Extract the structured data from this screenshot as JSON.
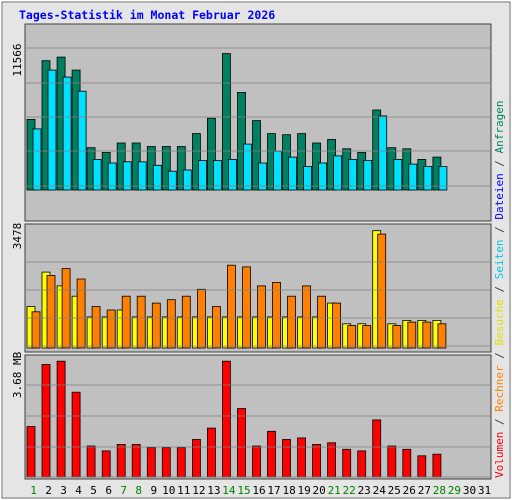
{
  "title": "Tages-Statistik im Monat Februar 2026",
  "colors": {
    "title": "#0000ff",
    "panel_bg": "#c0c0c0",
    "anfragen": "#008060",
    "seiten": "#00e0ff",
    "dateien": "#0000ff",
    "besuche": "#ffff00",
    "rechner": "#ff8000",
    "volumen": "#ff0000",
    "weekend_label": "#008000",
    "separator": "#404040"
  },
  "right_legend": [
    {
      "text": "Volumen",
      "color": "#ff0000"
    },
    {
      "text": " / ",
      "color": "#404040"
    },
    {
      "text": "Rechner",
      "color": "#ff8000"
    },
    {
      "text": " / ",
      "color": "#404040"
    },
    {
      "text": "Besuche",
      "color": "#e0e000"
    },
    {
      "text": " / ",
      "color": "#404040"
    },
    {
      "text": "Seiten",
      "color": "#00c8e0"
    },
    {
      "text": " / ",
      "color": "#404040"
    },
    {
      "text": "Dateien",
      "color": "#0000ff"
    },
    {
      "text": " / ",
      "color": "#404040"
    },
    {
      "text": "Anfragen",
      "color": "#008060"
    }
  ],
  "chart_data": [
    {
      "type": "bar",
      "panel": "top",
      "max_label": "11566",
      "ylim": [
        0,
        11566
      ],
      "categories": [
        "1",
        "2",
        "3",
        "4",
        "5",
        "6",
        "7",
        "8",
        "9",
        "10",
        "11",
        "12",
        "13",
        "14",
        "15",
        "16",
        "17",
        "18",
        "19",
        "20",
        "21",
        "22",
        "23",
        "24",
        "25",
        "26",
        "27",
        "28",
        "29",
        "30",
        "31"
      ],
      "weekend": [
        "1",
        "7",
        "8",
        "14",
        "15",
        "21",
        "22",
        "28",
        "29"
      ],
      "series": [
        {
          "name": "Anfragen",
          "color": "#008060",
          "values": [
            6000,
            11000,
            11300,
            10200,
            3600,
            3200,
            4000,
            4000,
            3700,
            3700,
            3700,
            4800,
            6100,
            11600,
            8300,
            5900,
            4800,
            4700,
            4800,
            4000,
            4300,
            3500,
            3200,
            6800,
            3600,
            3500,
            2600,
            2800,
            0,
            0,
            0
          ]
        },
        {
          "name": "Seiten",
          "color": "#00e0ff",
          "values": [
            5200,
            10200,
            9600,
            8400,
            2600,
            2300,
            2400,
            2400,
            2100,
            1600,
            1700,
            2500,
            2500,
            2600,
            3900,
            2300,
            3300,
            2800,
            2000,
            2300,
            2900,
            2600,
            2500,
            6300,
            2600,
            2200,
            2000,
            2000,
            0,
            0,
            0
          ]
        }
      ]
    },
    {
      "type": "bar",
      "panel": "middle",
      "max_label": "3478",
      "ylim": [
        0,
        3478
      ],
      "categories": [
        "1",
        "2",
        "3",
        "4",
        "5",
        "6",
        "7",
        "8",
        "9",
        "10",
        "11",
        "12",
        "13",
        "14",
        "15",
        "16",
        "17",
        "18",
        "19",
        "20",
        "21",
        "22",
        "23",
        "24",
        "25",
        "26",
        "27",
        "28",
        "29",
        "30",
        "31"
      ],
      "series": [
        {
          "name": "Besuche",
          "color": "#ffff00",
          "values": [
            1200,
            2200,
            1800,
            1500,
            900,
            900,
            1100,
            900,
            900,
            900,
            900,
            900,
            900,
            900,
            900,
            900,
            900,
            900,
            900,
            900,
            1300,
            700,
            700,
            3400,
            700,
            800,
            800,
            800,
            0,
            0,
            0
          ]
        },
        {
          "name": "Rechner",
          "color": "#ff8000",
          "values": [
            1050,
            2100,
            2300,
            2000,
            1200,
            1100,
            1500,
            1500,
            1300,
            1400,
            1500,
            1700,
            1200,
            2400,
            2350,
            1800,
            1900,
            1500,
            1800,
            1500,
            1300,
            650,
            650,
            3300,
            650,
            750,
            750,
            700,
            0,
            0,
            0
          ]
        }
      ]
    },
    {
      "type": "bar",
      "panel": "bottom",
      "max_label": "3.68 MB",
      "ylim": [
        0,
        3.68
      ],
      "categories": [
        "1",
        "2",
        "3",
        "4",
        "5",
        "6",
        "7",
        "8",
        "9",
        "10",
        "11",
        "12",
        "13",
        "14",
        "15",
        "16",
        "17",
        "18",
        "19",
        "20",
        "21",
        "22",
        "23",
        "24",
        "25",
        "26",
        "27",
        "28",
        "29",
        "30",
        "31"
      ],
      "series": [
        {
          "name": "Volumen",
          "color": "#ff0000",
          "values": [
            1.55,
            3.45,
            3.55,
            2.6,
            0.95,
            0.8,
            1.0,
            1.0,
            0.9,
            0.9,
            0.9,
            1.15,
            1.5,
            3.55,
            2.1,
            0.95,
            1.4,
            1.15,
            1.2,
            1.0,
            1.05,
            0.85,
            0.8,
            1.75,
            0.95,
            0.85,
            0.65,
            0.7,
            0,
            0,
            0
          ]
        }
      ]
    }
  ]
}
